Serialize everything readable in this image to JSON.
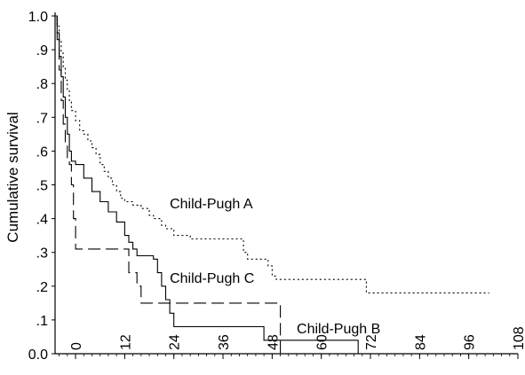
{
  "chart_data": {
    "type": "line",
    "title": "",
    "xlabel": "",
    "ylabel": "Cumulative survival",
    "xlim": [
      -5,
      108
    ],
    "ylim": [
      0,
      1
    ],
    "x_ticks": [
      0,
      12,
      24,
      36,
      48,
      60,
      72,
      84,
      96,
      108
    ],
    "y_ticks": [
      0,
      0.1,
      0.2,
      0.3,
      0.4,
      0.5,
      0.6,
      0.7,
      0.8,
      0.9,
      1.0
    ],
    "y_tick_labels": [
      "0.0",
      ".1",
      ".2",
      ".3",
      ".4",
      ".5",
      ".6",
      ".7",
      ".8",
      ".9",
      "1.0"
    ],
    "grid": false,
    "legend": "none",
    "series": [
      {
        "name": "Child-Pugh A",
        "style": "dotted",
        "points": [
          [
            -5,
            1.0
          ],
          [
            -4.5,
            0.97
          ],
          [
            -4,
            0.93
          ],
          [
            -3.5,
            0.89
          ],
          [
            -3,
            0.85
          ],
          [
            -2.5,
            0.81
          ],
          [
            -2,
            0.78
          ],
          [
            -1.5,
            0.75
          ],
          [
            -1,
            0.72
          ],
          [
            0,
            0.69
          ],
          [
            1,
            0.66
          ],
          [
            2,
            0.65
          ],
          [
            3,
            0.63
          ],
          [
            4,
            0.61
          ],
          [
            5,
            0.59
          ],
          [
            6,
            0.56
          ],
          [
            7,
            0.54
          ],
          [
            8,
            0.52
          ],
          [
            9,
            0.5
          ],
          [
            10,
            0.48
          ],
          [
            11,
            0.46
          ],
          [
            12,
            0.45
          ],
          [
            14,
            0.44
          ],
          [
            16,
            0.43
          ],
          [
            18,
            0.41
          ],
          [
            19,
            0.4
          ],
          [
            21,
            0.38
          ],
          [
            22,
            0.37
          ],
          [
            24,
            0.35
          ],
          [
            28,
            0.34
          ],
          [
            37,
            0.34
          ],
          [
            41,
            0.3
          ],
          [
            42,
            0.28
          ],
          [
            47,
            0.26
          ],
          [
            48,
            0.23
          ],
          [
            49,
            0.22
          ],
          [
            69,
            0.22
          ],
          [
            71,
            0.18
          ],
          [
            101,
            0.18
          ]
        ]
      },
      {
        "name": "Child-Pugh B",
        "style": "solid",
        "points": [
          [
            -5,
            1.0
          ],
          [
            -4.5,
            0.95
          ],
          [
            -4,
            0.88
          ],
          [
            -3.5,
            0.82
          ],
          [
            -3,
            0.76
          ],
          [
            -2.5,
            0.7
          ],
          [
            -2,
            0.65
          ],
          [
            -1.5,
            0.6
          ],
          [
            -1,
            0.57
          ],
          [
            0,
            0.56
          ],
          [
            2,
            0.52
          ],
          [
            4,
            0.48
          ],
          [
            6,
            0.45
          ],
          [
            8,
            0.42
          ],
          [
            10,
            0.39
          ],
          [
            12,
            0.35
          ],
          [
            13,
            0.33
          ],
          [
            14,
            0.31
          ],
          [
            15,
            0.29
          ],
          [
            19,
            0.28
          ],
          [
            20,
            0.24
          ],
          [
            21,
            0.2
          ],
          [
            22,
            0.16
          ],
          [
            23,
            0.12
          ],
          [
            24,
            0.08
          ],
          [
            45,
            0.08
          ],
          [
            46,
            0.04
          ],
          [
            55,
            0.04
          ],
          [
            69,
            0.04
          ],
          [
            69,
            0.0
          ]
        ]
      },
      {
        "name": "Child-Pugh C",
        "style": "dashed",
        "points": [
          [
            -5,
            1.0
          ],
          [
            -4.5,
            0.93
          ],
          [
            -4,
            0.84
          ],
          [
            -3.5,
            0.75
          ],
          [
            -3,
            0.68
          ],
          [
            -2.5,
            0.62
          ],
          [
            -2,
            0.58
          ],
          [
            -1.5,
            0.56
          ],
          [
            -1,
            0.5
          ],
          [
            -0.5,
            0.4
          ],
          [
            0,
            0.31
          ],
          [
            12,
            0.31
          ],
          [
            13,
            0.24
          ],
          [
            15,
            0.2
          ],
          [
            16,
            0.15
          ],
          [
            50,
            0.15
          ],
          [
            50,
            0.0
          ]
        ]
      }
    ],
    "annotations": [
      {
        "text": "Child-Pugh A",
        "x": 23,
        "y": 0.43
      },
      {
        "text": "Child-Pugh C",
        "x": 23,
        "y": 0.21
      },
      {
        "text": "Child-Pugh B",
        "x": 54,
        "y": 0.06
      }
    ]
  }
}
